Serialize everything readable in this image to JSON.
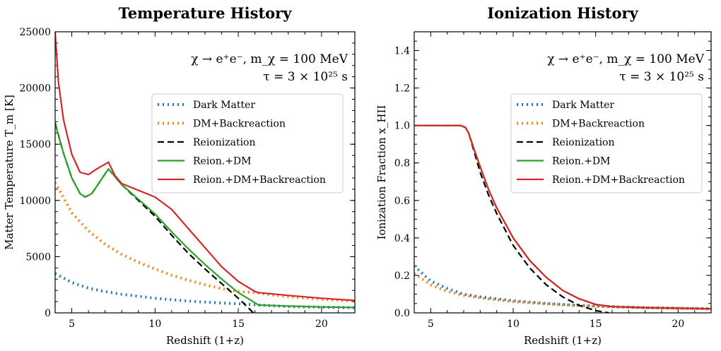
{
  "chart_data": [
    {
      "type": "line",
      "title": "Temperature History",
      "xlabel": "Redshift (1+z)",
      "ylabel": "Matter Temperature T_m [K]",
      "xlim": [
        4,
        22
      ],
      "ylim": [
        0,
        25000
      ],
      "xticks": [
        5,
        10,
        15,
        20
      ],
      "yticks": [
        0,
        5000,
        10000,
        15000,
        20000,
        25000
      ],
      "annotation": [
        "χ → e⁺e⁻, m_χ = 100 MeV",
        "τ = 3 × 10²⁵ s"
      ],
      "legend_position": "upper-right",
      "grid": false,
      "series": [
        {
          "name": "Dark Matter",
          "color": "#1f77b4",
          "dash": "dotted",
          "x": [
            4,
            5,
            6,
            7,
            8,
            10,
            12,
            14,
            15.5,
            16.2,
            18,
            20,
            22
          ],
          "y": [
            3500,
            2700,
            2200,
            1900,
            1650,
            1300,
            1050,
            870,
            770,
            700,
            560,
            500,
            450
          ]
        },
        {
          "name": "DM+Backreaction",
          "color": "#ff7f0e",
          "dash": "dotted",
          "x": [
            4,
            5,
            6,
            7,
            8,
            9,
            10,
            11,
            12,
            13,
            14,
            15,
            16,
            17,
            18,
            20,
            22
          ],
          "y": [
            11600,
            8900,
            7300,
            6100,
            5200,
            4500,
            3900,
            3350,
            2900,
            2500,
            2150,
            1900,
            1800,
            1600,
            1450,
            1200,
            1050
          ]
        },
        {
          "name": "Reionization",
          "color": "#000000",
          "dash": "dashed",
          "x": [
            4,
            4.5,
            5,
            5.5,
            5.8,
            6.2,
            6.7,
            7.2,
            8,
            9,
            10,
            11,
            12,
            13,
            14,
            15,
            15.5,
            15.9
          ],
          "y": [
            16900,
            14200,
            12000,
            10600,
            10300,
            10600,
            11700,
            12800,
            11400,
            10000,
            8600,
            6900,
            5300,
            3900,
            2600,
            1300,
            600,
            0
          ]
        },
        {
          "name": "Reion.+DM",
          "color": "#2ca02c",
          "dash": "solid",
          "x": [
            4,
            4.5,
            5,
            5.5,
            5.8,
            6.2,
            6.7,
            7.2,
            8,
            9,
            10,
            11,
            12,
            13,
            14,
            15,
            16,
            16.2,
            18,
            20,
            22
          ],
          "y": [
            16800,
            14200,
            12000,
            10600,
            10300,
            10600,
            11700,
            12800,
            11400,
            10100,
            8800,
            7200,
            5700,
            4300,
            3000,
            1800,
            900,
            700,
            600,
            530,
            480
          ]
        },
        {
          "name": "Reion.+DM+Backreaction",
          "color": "#d62728",
          "dash": "solid",
          "x": [
            4,
            4.2,
            4.5,
            5,
            5.5,
            6,
            6.5,
            7.2,
            7.6,
            8,
            9,
            10,
            11,
            12,
            13,
            14,
            15,
            16,
            16.2,
            18,
            20,
            22
          ],
          "y": [
            25000,
            20500,
            17200,
            14100,
            12500,
            12300,
            12800,
            13400,
            12200,
            11500,
            10900,
            10300,
            9200,
            7500,
            5800,
            4100,
            2800,
            1900,
            1800,
            1550,
            1300,
            1100
          ]
        }
      ]
    },
    {
      "type": "line",
      "title": "Ionization History",
      "xlabel": "Redshift (1+z)",
      "ylabel": "Ionization Fraction x_HII",
      "xlim": [
        4,
        22
      ],
      "ylim": [
        0,
        1.5
      ],
      "xticks": [
        5,
        10,
        15,
        20
      ],
      "yticks": [
        0.0,
        0.2,
        0.4,
        0.6,
        0.8,
        1.0,
        1.2,
        1.4
      ],
      "annotation": [
        "χ → e⁺e⁻, m_χ = 100 MeV",
        "τ = 3 × 10²⁵ s"
      ],
      "legend_position": "upper-right",
      "grid": false,
      "series": [
        {
          "name": "Dark Matter",
          "color": "#1f77b4",
          "dash": "dotted",
          "x": [
            4,
            5,
            6,
            7,
            8,
            10,
            12,
            14,
            16,
            18,
            20,
            22
          ],
          "y": [
            0.25,
            0.17,
            0.13,
            0.1,
            0.085,
            0.065,
            0.05,
            0.04,
            0.033,
            0.028,
            0.025,
            0.022
          ]
        },
        {
          "name": "DM+Backreaction",
          "color": "#ff7f0e",
          "dash": "dotted",
          "x": [
            4,
            5,
            6,
            7,
            8,
            10,
            12,
            14,
            16,
            18,
            20,
            22
          ],
          "y": [
            0.21,
            0.15,
            0.115,
            0.093,
            0.08,
            0.06,
            0.048,
            0.038,
            0.032,
            0.027,
            0.024,
            0.021
          ]
        },
        {
          "name": "Reionization",
          "color": "#000000",
          "dash": "dashed",
          "x": [
            4,
            5,
            6,
            6.8,
            7.1,
            7.3,
            7.6,
            8,
            8.5,
            9,
            10,
            11,
            12,
            13,
            14,
            15,
            15.8
          ],
          "y": [
            1.0,
            1.0,
            1.0,
            1.0,
            0.99,
            0.96,
            0.87,
            0.75,
            0.63,
            0.53,
            0.36,
            0.24,
            0.15,
            0.085,
            0.04,
            0.012,
            0.0
          ]
        },
        {
          "name": "Reion.+DM",
          "color": "#2ca02c",
          "dash": "solid",
          "x": [
            4,
            5,
            6,
            6.8,
            7.1,
            7.3,
            7.6,
            8,
            8.5,
            9,
            10,
            11,
            12,
            13,
            14,
            15,
            16,
            18,
            20,
            22
          ],
          "y": [
            1.0,
            1.0,
            1.0,
            1.0,
            0.99,
            0.96,
            0.88,
            0.78,
            0.66,
            0.56,
            0.4,
            0.28,
            0.19,
            0.12,
            0.075,
            0.045,
            0.033,
            0.028,
            0.025,
            0.022
          ]
        },
        {
          "name": "Reion.+DM+Backreaction",
          "color": "#d62728",
          "dash": "solid",
          "x": [
            4,
            5,
            6,
            6.8,
            7.1,
            7.3,
            7.6,
            8,
            8.5,
            9,
            10,
            11,
            12,
            13,
            14,
            15,
            16,
            18,
            20,
            22
          ],
          "y": [
            1.0,
            1.0,
            1.0,
            1.0,
            0.99,
            0.96,
            0.88,
            0.78,
            0.66,
            0.56,
            0.4,
            0.28,
            0.19,
            0.12,
            0.075,
            0.045,
            0.033,
            0.028,
            0.025,
            0.022
          ]
        }
      ]
    }
  ]
}
